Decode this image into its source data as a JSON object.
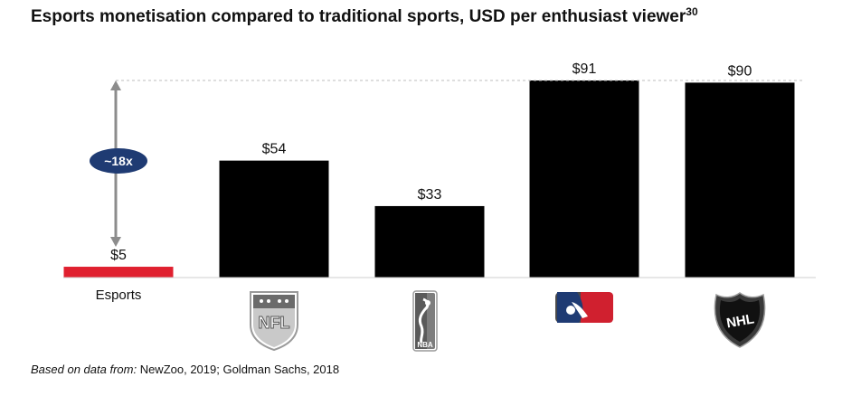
{
  "title": "Esports monetisation compared to traditional sports, USD per enthusiast viewer",
  "title_superscript": "30",
  "footer": {
    "prefix": "Based on data from:",
    "text": " NewZoo, 2019; Goldman Sachs, 2018"
  },
  "colors": {
    "esports": "#e0202f",
    "traditional": "#000000",
    "badge": "#1f3b73",
    "arrow": "#8c8c8c"
  },
  "chart_data": {
    "type": "bar",
    "categories": [
      "Esports",
      "NFL",
      "NBA",
      "MLB",
      "NHL"
    ],
    "values": [
      5,
      54,
      33,
      91,
      90
    ],
    "value_labels": [
      "$5",
      "$54",
      "$33",
      "$91",
      "$90"
    ],
    "category_icons": [
      "",
      "nfl-logo-icon",
      "nba-logo-icon",
      "mlb-logo-icon",
      "nhl-logo-icon"
    ],
    "ylim": [
      0,
      91
    ],
    "annotation": {
      "text": "~18x"
    }
  }
}
